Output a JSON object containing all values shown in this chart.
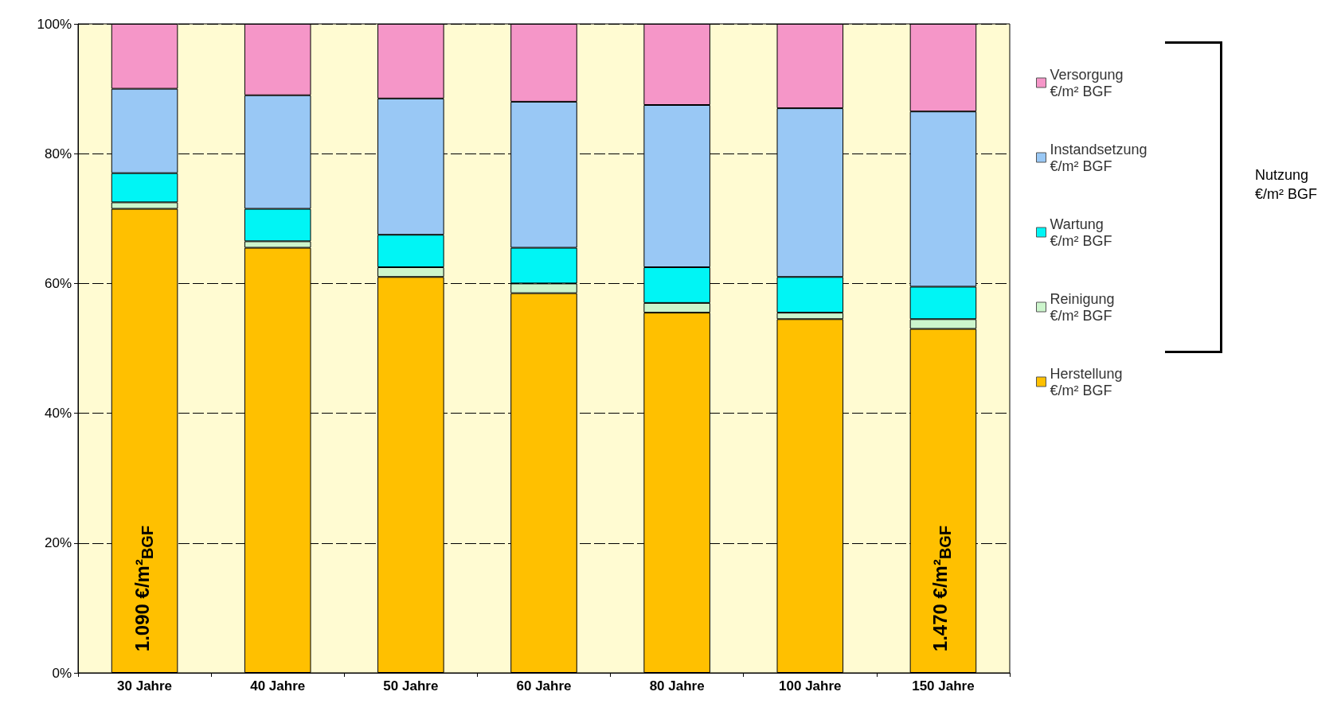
{
  "chart_data": {
    "type": "bar",
    "stacked": true,
    "categories": [
      "30 Jahre",
      "40 Jahre",
      "50 Jahre",
      "60 Jahre",
      "80 Jahre",
      "100 Jahre",
      "150 Jahre"
    ],
    "series": [
      {
        "name": "Herstellung €/m² BGF",
        "color": "#ffc000",
        "values": [
          71.5,
          65.5,
          61,
          58.5,
          55.5,
          54.5,
          53
        ]
      },
      {
        "name": "Reinigung €/m² BGF",
        "color": "#ccf5cc",
        "values": [
          1,
          1,
          1.5,
          1.5,
          1.5,
          1,
          1.5
        ]
      },
      {
        "name": "Wartung €/m² BGF",
        "color": "#00f5f5",
        "values": [
          4.5,
          5,
          5,
          5.5,
          5.5,
          5.5,
          5
        ]
      },
      {
        "name": "Instandsetzung €/m² BGF",
        "color": "#99c8f5",
        "values": [
          13,
          17.5,
          21,
          22.5,
          25,
          26,
          27
        ]
      },
      {
        "name": "Versorgung €/m² BGF",
        "color": "#f596c8",
        "values": [
          10,
          11,
          11.5,
          12,
          12.5,
          13,
          13.5
        ]
      }
    ],
    "ylim": [
      0,
      100
    ],
    "yticks": [
      {
        "value": 0,
        "label": "0%"
      },
      {
        "value": 20,
        "label": "20%"
      },
      {
        "value": 40,
        "label": "40%"
      },
      {
        "value": 60,
        "label": "60%"
      },
      {
        "value": 80,
        "label": "80%"
      },
      {
        "value": 100,
        "label": "100%"
      }
    ],
    "grid": "y",
    "legend": "right",
    "annotations": [
      "1.090 €/m²$_{BGF}$",
      "1.470 €/m²$_{BGF}$",
      "Nutzung €/m² BGF"
    ]
  }
}
